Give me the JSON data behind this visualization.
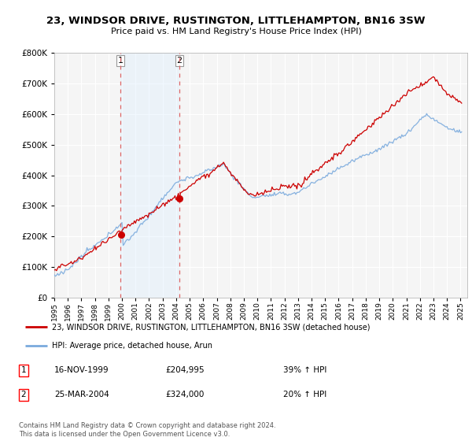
{
  "title": "23, WINDSOR DRIVE, RUSTINGTON, LITTLEHAMPTON, BN16 3SW",
  "subtitle": "Price paid vs. HM Land Registry's House Price Index (HPI)",
  "legend_line1": "23, WINDSOR DRIVE, RUSTINGTON, LITTLEHAMPTON, BN16 3SW (detached house)",
  "legend_line2": "HPI: Average price, detached house, Arun",
  "footnote": "Contains HM Land Registry data © Crown copyright and database right 2024.\nThis data is licensed under the Open Government Licence v3.0.",
  "transaction1_date": "16-NOV-1999",
  "transaction1_price": "£204,995",
  "transaction1_hpi": "39% ↑ HPI",
  "transaction2_date": "25-MAR-2004",
  "transaction2_price": "£324,000",
  "transaction2_hpi": "20% ↑ HPI",
  "sale1_year": 1999.88,
  "sale1_price": 204995,
  "sale2_year": 2004.23,
  "sale2_price": 324000,
  "red_line_color": "#cc0000",
  "blue_line_color": "#7aaadd",
  "vline_color": "#dd6666",
  "background_color": "#f0f0f0",
  "plot_bg_color": "#f5f5f5",
  "grid_color": "#ffffff",
  "shade_color": "#ddeeff",
  "ylim": [
    0,
    800000
  ],
  "yticks": [
    0,
    100000,
    200000,
    300000,
    400000,
    500000,
    600000,
    700000,
    800000
  ],
  "xmin": 1995.0,
  "xmax": 2025.5
}
